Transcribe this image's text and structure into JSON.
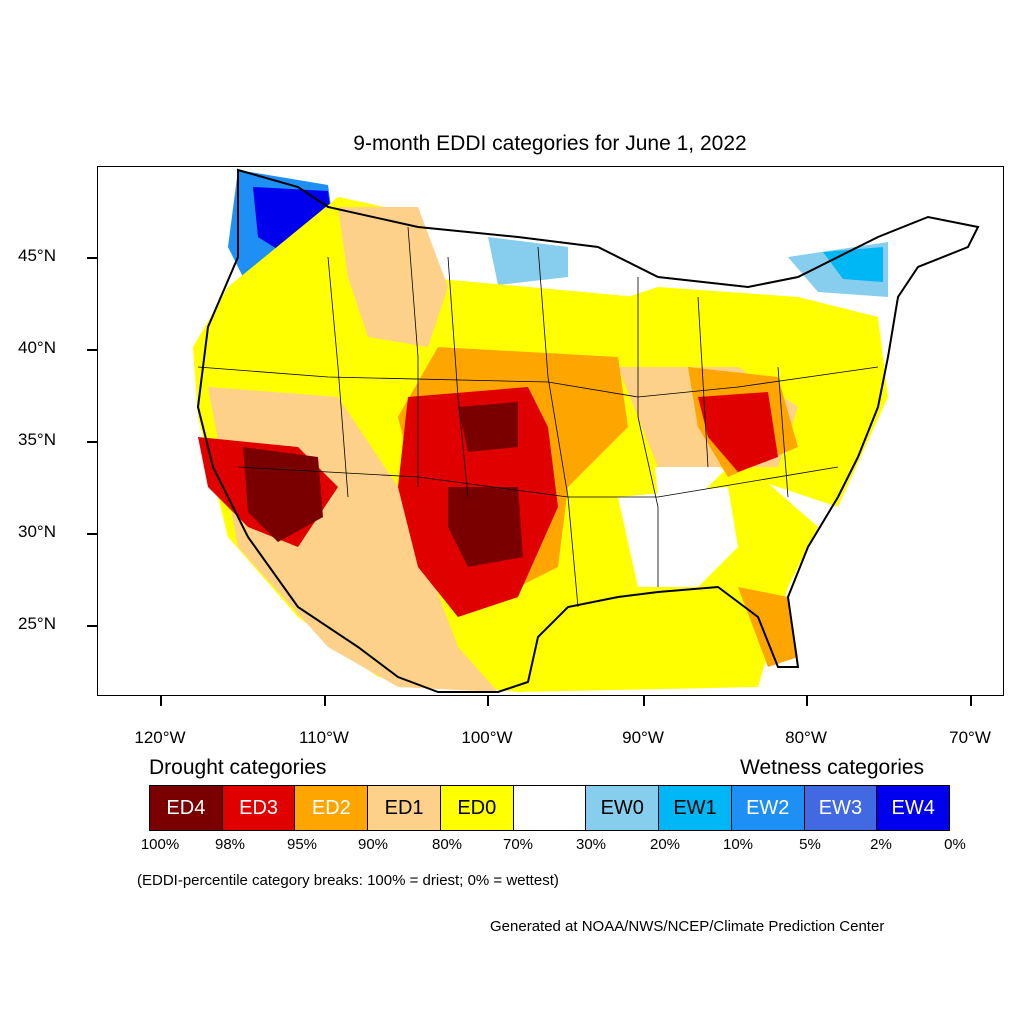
{
  "title": "9-month EDDI categories for June 1, 2022",
  "lat_labels": [
    "45°N",
    "40°N",
    "35°N",
    "30°N",
    "25°N"
  ],
  "lon_labels": [
    "120°W",
    "110°W",
    "100°W",
    "90°W",
    "80°W",
    "70°W"
  ],
  "legend": {
    "drought_heading": "Drought categories",
    "wetness_heading": "Wetness categories",
    "categories": [
      {
        "label": "ED4",
        "color": "#7a0000",
        "text_color": "#ffffff"
      },
      {
        "label": "ED3",
        "color": "#e00000",
        "text_color": "#ffffff"
      },
      {
        "label": "ED2",
        "color": "#ffa500",
        "text_color": "#ffffff"
      },
      {
        "label": "ED1",
        "color": "#fdd18a",
        "text_color": "#000000"
      },
      {
        "label": "ED0",
        "color": "#ffff00",
        "text_color": "#000000"
      },
      {
        "label": "",
        "color": "#ffffff",
        "text_color": "#000000"
      },
      {
        "label": "EW0",
        "color": "#87cdee",
        "text_color": "#000000"
      },
      {
        "label": "EW1",
        "color": "#00b7f5",
        "text_color": "#000000"
      },
      {
        "label": "EW2",
        "color": "#1e8ff5",
        "text_color": "#ffffff"
      },
      {
        "label": "EW3",
        "color": "#4169e1",
        "text_color": "#ffffff"
      },
      {
        "label": "EW4",
        "color": "#0000ee",
        "text_color": "#ffffff"
      }
    ],
    "breaks": [
      "100%",
      "98%",
      "95%",
      "90%",
      "80%",
      "70%",
      "30%",
      "20%",
      "10%",
      "5%",
      "2%",
      "0%"
    ]
  },
  "breaks_note": "(EDDI-percentile category breaks: 100% = driest; 0% = wettest)",
  "credit": "Generated at NOAA/NWS/NCEP/Climate Prediction Center"
}
